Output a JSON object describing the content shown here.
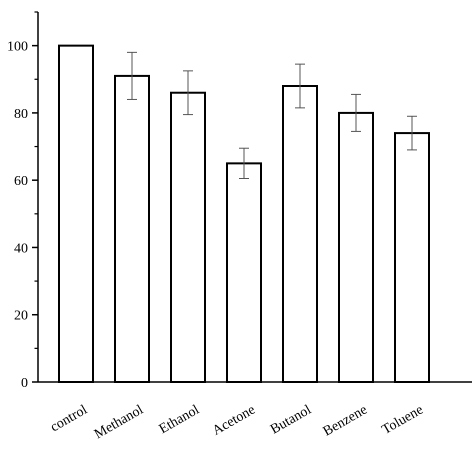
{
  "chart_data": {
    "type": "bar",
    "categories": [
      "control",
      "Methanol",
      "Ethanol",
      "Acetone",
      "Butanol",
      "Benzene",
      "Toluene"
    ],
    "values": [
      100,
      91,
      86,
      65,
      88,
      80,
      74
    ],
    "errors": [
      0,
      7,
      6.5,
      4.5,
      6.5,
      5.5,
      5
    ],
    "color": "#ffffff",
    "ylim": [
      0,
      110
    ],
    "yticks": [
      0,
      20,
      40,
      60,
      80,
      100
    ],
    "minor_yticks": [
      10,
      30,
      50,
      70,
      90,
      110
    ],
    "grid": false
  }
}
